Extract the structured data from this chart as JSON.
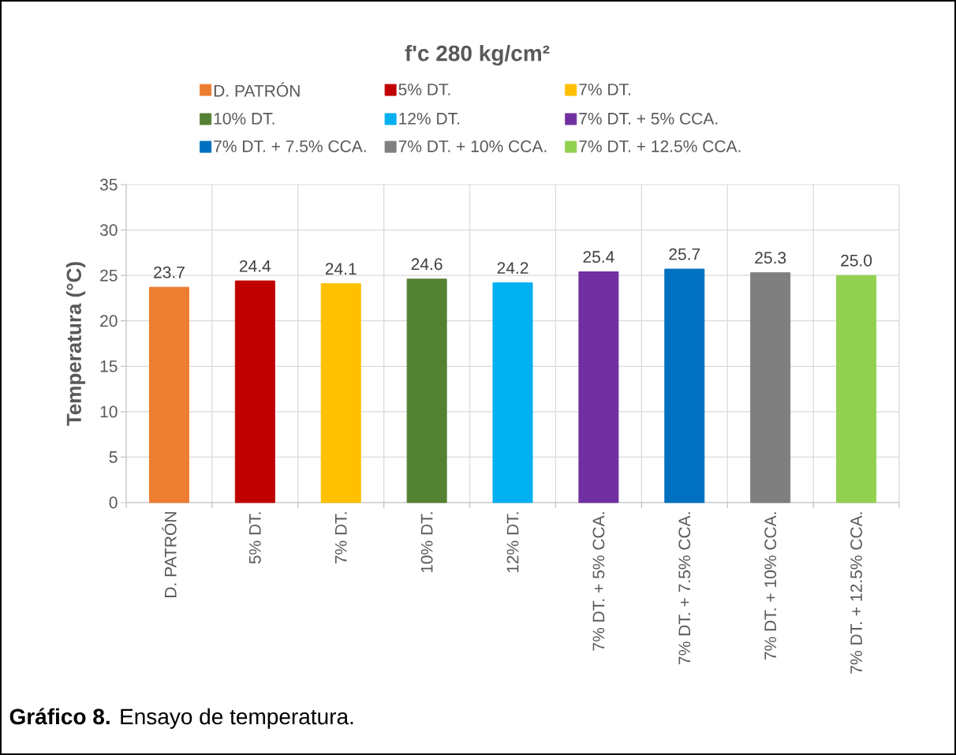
{
  "chart_data": {
    "type": "bar",
    "title": "f'c 280 kg/cm²",
    "ylabel": "Temperatura (°C)",
    "categories": [
      "D. PATRÓN",
      "5% DT.",
      "7% DT.",
      "10% DT.",
      "12% DT.",
      "7% DT. + 5% CCA.",
      "7% DT. + 7.5% CCA.",
      "7% DT. + 10% CCA.",
      "7% DT. + 12.5% CCA."
    ],
    "series": [
      {
        "name": "D. PATRÓN",
        "color": "#ed7d31",
        "values": [
          23.7,
          null,
          null,
          null,
          null,
          null,
          null,
          null,
          null
        ],
        "value_labels": [
          "23.7",
          null,
          null,
          null,
          null,
          null,
          null,
          null,
          null
        ]
      },
      {
        "name": "5% DT.",
        "color": "#c00000",
        "values": [
          null,
          24.4,
          null,
          null,
          null,
          null,
          null,
          null,
          null
        ],
        "value_labels": [
          null,
          "24.4",
          null,
          null,
          null,
          null,
          null,
          null,
          null
        ]
      },
      {
        "name": "7% DT.",
        "color": "#ffc000",
        "values": [
          null,
          null,
          24.1,
          null,
          null,
          null,
          null,
          null,
          null
        ],
        "value_labels": [
          null,
          null,
          "24.1",
          null,
          null,
          null,
          null,
          null,
          null
        ]
      },
      {
        "name": "10% DT.",
        "color": "#548235",
        "values": [
          null,
          null,
          null,
          24.6,
          null,
          null,
          null,
          null,
          null
        ],
        "value_labels": [
          null,
          null,
          null,
          "24.6",
          null,
          null,
          null,
          null,
          null
        ]
      },
      {
        "name": "12% DT.",
        "color": "#00b0f0",
        "values": [
          null,
          null,
          null,
          null,
          24.2,
          null,
          null,
          null,
          null
        ],
        "value_labels": [
          null,
          null,
          null,
          null,
          "24.2",
          null,
          null,
          null,
          null
        ]
      },
      {
        "name": "7% DT. + 5% CCA.",
        "color": "#7030a0",
        "values": [
          null,
          null,
          null,
          null,
          null,
          25.4,
          null,
          null,
          null
        ],
        "value_labels": [
          null,
          null,
          null,
          null,
          null,
          "25.4",
          null,
          null,
          null
        ]
      },
      {
        "name": "7% DT. + 7.5% CCA.",
        "color": "#0070c0",
        "values": [
          null,
          null,
          null,
          null,
          null,
          null,
          25.7,
          null,
          null
        ],
        "value_labels": [
          null,
          null,
          null,
          null,
          null,
          null,
          "25.7",
          null,
          null
        ]
      },
      {
        "name": "7% DT. + 10% CCA.",
        "color": "#7f7f7f",
        "values": [
          null,
          null,
          null,
          null,
          null,
          null,
          null,
          25.3,
          null
        ],
        "value_labels": [
          null,
          null,
          null,
          null,
          null,
          null,
          null,
          "25.3",
          null
        ]
      },
      {
        "name": "7% DT. + 12.5% CCA.",
        "color": "#92d050",
        "values": [
          null,
          null,
          null,
          null,
          null,
          null,
          null,
          null,
          25.0
        ],
        "value_labels": [
          null,
          null,
          null,
          null,
          null,
          null,
          null,
          null,
          "25.0"
        ]
      }
    ],
    "ylim": [
      0,
      35
    ],
    "yticks": [
      0,
      5,
      10,
      15,
      20,
      25,
      30,
      35
    ],
    "grid": true,
    "legend": "top",
    "annotations": [
      "**Gráfico 8.** Ensayo de temperatura."
    ]
  }
}
